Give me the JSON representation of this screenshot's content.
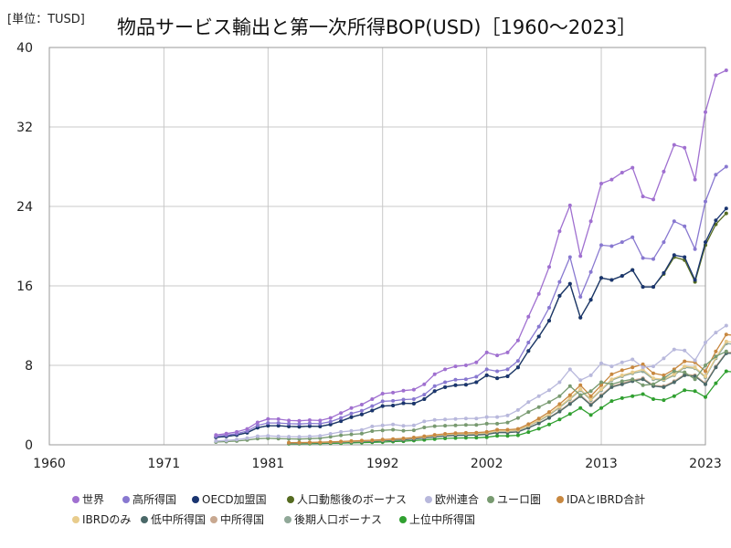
{
  "chart_data": {
    "type": "line",
    "unit_label": "[単位：TUSD]",
    "title": "物品サービス輸出と第一次所得BOP(USD)［1960〜2023］",
    "xlabel": "",
    "ylabel": "",
    "xlim": [
      1960,
      2023
    ],
    "ylim": [
      0,
      40
    ],
    "x_ticks": [
      "1960",
      "1971",
      "1981",
      "1992",
      "2002",
      "2013",
      "2023"
    ],
    "y_ticks": [
      "0",
      "8",
      "16",
      "24",
      "32",
      "40"
    ],
    "grid": true,
    "legend_position": "bottom",
    "series": [
      {
        "name": "世界",
        "color": "#a070d0",
        "start": 1976,
        "values": [
          0.98,
          1.12,
          1.3,
          1.6,
          2.25,
          2.6,
          2.58,
          2.45,
          2.42,
          2.48,
          2.45,
          2.7,
          3.2,
          3.7,
          4.05,
          4.6,
          5.15,
          5.25,
          5.45,
          5.55,
          6.1,
          7.1,
          7.6,
          7.9,
          8.0,
          8.3,
          9.3,
          9.0,
          9.3,
          10.5,
          12.9,
          15.2,
          17.9,
          21.5,
          24.1,
          19.0,
          22.5,
          26.3,
          26.7,
          27.4,
          27.9,
          25.0,
          24.7,
          27.5,
          30.2,
          29.9,
          26.7,
          33.5,
          37.2,
          37.7
        ]
      },
      {
        "name": "高所得国",
        "color": "#8878d0",
        "start": 1976,
        "values": [
          0.85,
          0.97,
          1.12,
          1.38,
          1.95,
          2.2,
          2.2,
          2.12,
          2.1,
          2.15,
          2.12,
          2.33,
          2.7,
          3.15,
          3.42,
          3.9,
          4.38,
          4.42,
          4.55,
          4.6,
          5.05,
          5.9,
          6.3,
          6.55,
          6.6,
          6.85,
          7.6,
          7.4,
          7.6,
          8.45,
          10.3,
          11.9,
          13.8,
          16.4,
          18.9,
          14.9,
          17.4,
          20.1,
          20.0,
          20.4,
          20.9,
          18.8,
          18.7,
          20.4,
          22.5,
          22.0,
          19.7,
          24.5,
          27.2,
          28.0
        ]
      },
      {
        "name": "OECD加盟国",
        "color": "#1a3570",
        "start": 1976,
        "values": [
          0.75,
          0.85,
          0.98,
          1.22,
          1.72,
          1.92,
          1.92,
          1.85,
          1.82,
          1.88,
          1.85,
          2.05,
          2.38,
          2.78,
          3.05,
          3.45,
          3.9,
          3.95,
          4.18,
          4.15,
          4.6,
          5.4,
          5.8,
          6.0,
          6.05,
          6.3,
          7.0,
          6.7,
          6.9,
          7.8,
          9.45,
          10.9,
          12.5,
          15.0,
          16.2,
          12.8,
          14.6,
          16.8,
          16.6,
          17.0,
          17.6,
          15.9,
          15.9,
          17.3,
          19.1,
          18.9,
          16.6,
          20.4,
          22.6,
          23.8
        ]
      },
      {
        "name": "人口動態後のボーナス",
        "color": "#556b20",
        "start": 1976,
        "values": [
          0.75,
          0.85,
          0.98,
          1.22,
          1.72,
          1.92,
          1.92,
          1.85,
          1.82,
          1.88,
          1.85,
          2.05,
          2.38,
          2.78,
          3.05,
          3.45,
          3.9,
          3.95,
          4.18,
          4.15,
          4.6,
          5.4,
          5.8,
          6.0,
          6.05,
          6.3,
          7.0,
          6.7,
          6.9,
          7.8,
          9.45,
          10.9,
          12.5,
          15.0,
          16.2,
          12.8,
          14.6,
          16.8,
          16.6,
          17.0,
          17.6,
          15.9,
          15.9,
          17.2,
          18.9,
          18.6,
          16.4,
          20.1,
          22.2,
          23.3
        ]
      },
      {
        "name": "欧州連合",
        "color": "#b8b8dc",
        "start": 1976,
        "values": [
          0.38,
          0.44,
          0.52,
          0.66,
          0.86,
          0.9,
          0.85,
          0.82,
          0.8,
          0.85,
          0.9,
          1.1,
          1.3,
          1.4,
          1.5,
          1.85,
          1.95,
          2.05,
          1.9,
          1.95,
          2.35,
          2.5,
          2.55,
          2.6,
          2.65,
          2.65,
          2.8,
          2.8,
          2.95,
          3.5,
          4.3,
          4.9,
          5.5,
          6.3,
          7.6,
          6.5,
          7.0,
          8.2,
          7.9,
          8.3,
          8.6,
          7.8,
          7.9,
          8.7,
          9.6,
          9.5,
          8.5,
          10.3,
          11.3,
          12.0
        ]
      },
      {
        "name": "ユーロ圏",
        "color": "#789a70",
        "start": 1976,
        "values": [
          0.28,
          0.32,
          0.38,
          0.48,
          0.62,
          0.65,
          0.62,
          0.6,
          0.58,
          0.62,
          0.66,
          0.8,
          0.96,
          1.05,
          1.12,
          1.38,
          1.45,
          1.52,
          1.42,
          1.46,
          1.75,
          1.88,
          1.92,
          1.96,
          2.0,
          2.0,
          2.12,
          2.12,
          2.24,
          2.7,
          3.3,
          3.8,
          4.3,
          4.9,
          5.9,
          5.0,
          5.4,
          6.3,
          6.1,
          6.4,
          6.6,
          6.0,
          6.1,
          6.7,
          7.4,
          7.3,
          6.6,
          8.0,
          8.9,
          9.4
        ]
      },
      {
        "name": "IDAとIBRD合計",
        "color": "#c88840",
        "start": 1983,
        "values": [
          0.22,
          0.23,
          0.24,
          0.26,
          0.29,
          0.33,
          0.38,
          0.42,
          0.46,
          0.52,
          0.58,
          0.64,
          0.74,
          0.86,
          1.0,
          1.1,
          1.18,
          1.2,
          1.22,
          1.3,
          1.52,
          1.52,
          1.6,
          2.08,
          2.65,
          3.3,
          4.1,
          5.0,
          6.0,
          4.9,
          6.0,
          7.1,
          7.5,
          7.8,
          8.1,
          7.2,
          7.0,
          7.6,
          8.4,
          8.3,
          7.4,
          9.4,
          11.1,
          11.0
        ]
      },
      {
        "name": "IBRDのみ",
        "color": "#e8cc8c",
        "start": 1983,
        "values": [
          0.2,
          0.21,
          0.22,
          0.24,
          0.27,
          0.3,
          0.35,
          0.39,
          0.43,
          0.48,
          0.54,
          0.6,
          0.69,
          0.8,
          0.93,
          1.02,
          1.1,
          1.12,
          1.14,
          1.21,
          1.42,
          1.42,
          1.5,
          1.95,
          2.48,
          3.1,
          3.85,
          4.7,
          5.6,
          4.6,
          5.6,
          6.6,
          7.0,
          7.3,
          7.6,
          6.7,
          6.6,
          7.1,
          7.9,
          7.8,
          6.9,
          8.8,
          10.4,
          10.3
        ]
      },
      {
        "name": "低中所得国",
        "color": "#4a6868",
        "start": 1983,
        "values": [
          0.16,
          0.17,
          0.18,
          0.2,
          0.22,
          0.25,
          0.29,
          0.32,
          0.36,
          0.4,
          0.45,
          0.5,
          0.58,
          0.68,
          0.8,
          0.88,
          0.94,
          0.96,
          0.98,
          1.04,
          1.22,
          1.22,
          1.3,
          1.7,
          2.15,
          2.7,
          3.35,
          4.1,
          4.9,
          4.0,
          4.9,
          5.8,
          6.1,
          6.4,
          6.6,
          5.9,
          5.8,
          6.3,
          7.0,
          6.9,
          6.1,
          7.8,
          9.2,
          9.2
        ]
      },
      {
        "name": "中所得国",
        "color": "#c8a890",
        "start": 1983,
        "values": [
          0.17,
          0.18,
          0.19,
          0.21,
          0.23,
          0.26,
          0.3,
          0.33,
          0.37,
          0.42,
          0.47,
          0.52,
          0.6,
          0.7,
          0.82,
          0.9,
          0.97,
          0.99,
          1.01,
          1.07,
          1.25,
          1.25,
          1.33,
          1.74,
          2.2,
          2.76,
          3.42,
          4.2,
          5.0,
          4.1,
          5.0,
          5.9,
          6.2,
          6.5,
          6.7,
          6.0,
          5.9,
          6.4,
          7.1,
          7.0,
          6.2,
          7.9,
          9.3,
          9.3
        ]
      },
      {
        "name": "後期人口ボーナス",
        "color": "#90a898",
        "start": 1983,
        "values": [
          0.19,
          0.2,
          0.21,
          0.23,
          0.26,
          0.29,
          0.34,
          0.37,
          0.41,
          0.46,
          0.51,
          0.57,
          0.66,
          0.77,
          0.9,
          0.99,
          1.06,
          1.08,
          1.1,
          1.17,
          1.37,
          1.37,
          1.45,
          1.9,
          2.4,
          3.0,
          3.75,
          4.6,
          5.5,
          4.5,
          5.5,
          6.5,
          6.9,
          7.2,
          7.4,
          6.6,
          6.5,
          7.0,
          7.8,
          7.7,
          6.8,
          8.7,
          10.2,
          10.1
        ]
      },
      {
        "name": "上位中所得国",
        "color": "#30a030",
        "start": 1983,
        "values": [
          0.1,
          0.11,
          0.12,
          0.13,
          0.15,
          0.17,
          0.2,
          0.22,
          0.25,
          0.28,
          0.32,
          0.36,
          0.42,
          0.5,
          0.58,
          0.64,
          0.68,
          0.7,
          0.71,
          0.76,
          0.9,
          0.9,
          0.96,
          1.28,
          1.62,
          2.05,
          2.55,
          3.1,
          3.7,
          3.0,
          3.7,
          4.4,
          4.7,
          4.9,
          5.1,
          4.6,
          4.5,
          4.9,
          5.5,
          5.4,
          4.8,
          6.2,
          7.4,
          7.3
        ]
      }
    ]
  }
}
